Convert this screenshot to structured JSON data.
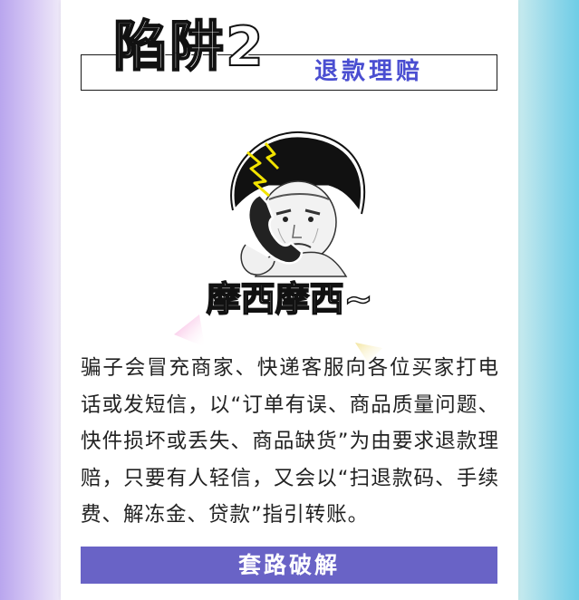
{
  "heading": {
    "title": "陷阱2",
    "subtitle": "退款理赔"
  },
  "meme": {
    "caption": "摩西摩西~"
  },
  "body": {
    "paragraph": "骗子会冒充商家、快递客服向各位买家打电话或发短信，以“订单有误、商品质量问题、快件损坏或丢失、商品缺货”为由要求退款理赔，只要有人轻信，又会以“扫退款码、手续费、解冻金、贷款”指引转账。"
  },
  "banner": {
    "label": "套路破解"
  },
  "colors": {
    "accent": "#4a4ed1",
    "banner": "#6963c6"
  }
}
